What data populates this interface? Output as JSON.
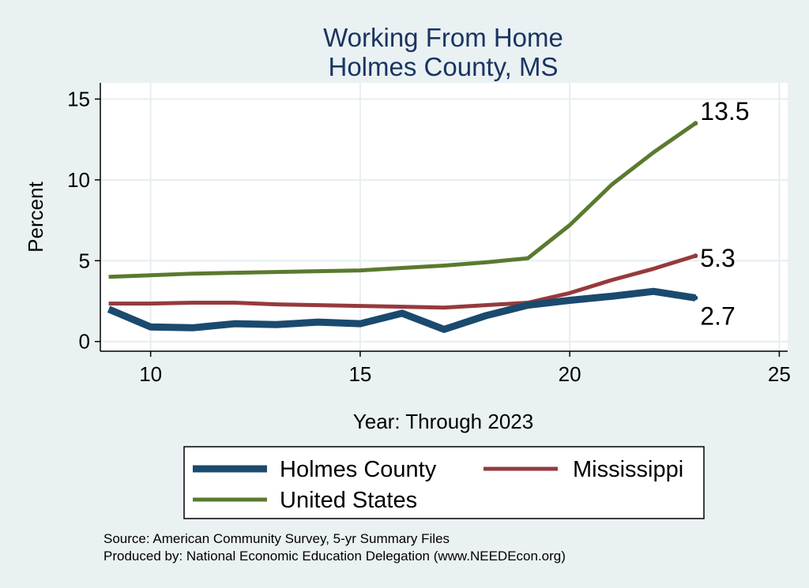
{
  "chart_data": {
    "type": "line",
    "title": [
      "Working From Home",
      "Holmes County, MS"
    ],
    "xlabel": "Year: Through 2023",
    "ylabel": "Percent",
    "xlim": [
      8.8,
      25.2
    ],
    "ylim": [
      -0.6,
      16
    ],
    "xticks": [
      10,
      15,
      20,
      25
    ],
    "yticks": [
      0,
      5,
      10,
      15
    ],
    "grid": true,
    "legend_position": "bottom",
    "series": [
      {
        "name": "Holmes County",
        "color": "#1a4a6e",
        "line_width": 9,
        "x": [
          9,
          10,
          11,
          12,
          13,
          14,
          15,
          16,
          17,
          18,
          19,
          20,
          21,
          22,
          23
        ],
        "y": [
          2.0,
          0.9,
          0.85,
          1.1,
          1.05,
          1.2,
          1.1,
          1.75,
          0.75,
          1.6,
          2.25,
          2.55,
          2.8,
          3.1,
          2.7
        ],
        "end_label": "2.7"
      },
      {
        "name": "Mississippi",
        "color": "#963a3d",
        "line_width": 5,
        "x": [
          9,
          10,
          11,
          12,
          13,
          14,
          15,
          16,
          17,
          18,
          19,
          20,
          21,
          22,
          23
        ],
        "y": [
          2.35,
          2.35,
          2.4,
          2.4,
          2.3,
          2.25,
          2.2,
          2.15,
          2.1,
          2.25,
          2.4,
          3.0,
          3.8,
          4.5,
          5.3
        ],
        "end_label": "5.3"
      },
      {
        "name": "United States",
        "color": "#5a7a2e",
        "line_width": 5,
        "x": [
          9,
          10,
          11,
          12,
          13,
          14,
          15,
          16,
          17,
          18,
          19,
          20,
          21,
          22,
          23
        ],
        "y": [
          4.0,
          4.1,
          4.2,
          4.25,
          4.3,
          4.35,
          4.4,
          4.55,
          4.7,
          4.9,
          5.15,
          7.2,
          9.7,
          11.7,
          13.5
        ],
        "end_label": "13.5"
      }
    ]
  },
  "notes": [
    "Source: American Community Survey, 5-yr Summary Files",
    "Produced by: National Economic Education Delegation (www.NEEDEcon.org)"
  ],
  "colors": {
    "background": "#eaf1f3",
    "plot_background": "#ffffff",
    "title": "#1a3560",
    "grid": "#e6eef1"
  }
}
